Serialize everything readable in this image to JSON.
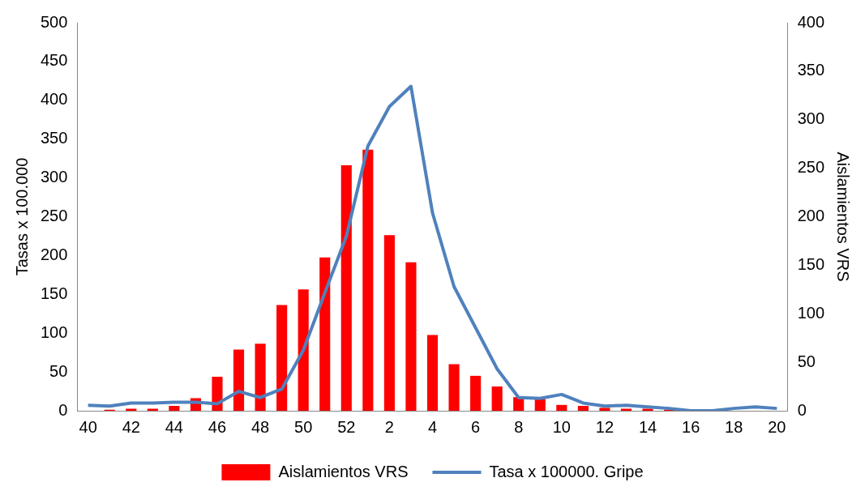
{
  "chart_data": {
    "type": "bar",
    "ylabel": "Tasas x 100.000",
    "y2label": "Aislamientos VRS",
    "categories": [
      "40",
      null,
      "42",
      null,
      "44",
      null,
      "46",
      null,
      "48",
      null,
      "50",
      null,
      "52",
      null,
      "2",
      null,
      "4",
      null,
      "6",
      null,
      "8",
      null,
      "10",
      null,
      "12",
      null,
      "14",
      null,
      "16",
      null,
      "18",
      null,
      "20"
    ],
    "series": [
      {
        "name": "Aislamientos VRS",
        "axis": "y2",
        "color": "#ff0000",
        "values": [
          0,
          1,
          2,
          2,
          5,
          13,
          35,
          63,
          69,
          109,
          125,
          158,
          253,
          269,
          181,
          153,
          78,
          48,
          36,
          25,
          14,
          12,
          6,
          5,
          3,
          2,
          2,
          1,
          0,
          0,
          0,
          0,
          0
        ]
      },
      {
        "name": "Tasa x 100000. Gripe",
        "type": "line",
        "axis": "y",
        "color": "#4f81bd",
        "values": [
          7,
          6,
          10,
          10,
          11,
          11,
          9,
          25,
          17,
          28,
          78,
          152,
          225,
          341,
          392,
          418,
          255,
          160,
          107,
          54,
          17,
          16,
          21,
          10,
          6,
          7,
          5,
          3,
          0,
          0,
          3,
          5,
          3
        ]
      }
    ],
    "ylim": [
      0,
      500
    ],
    "yticks": [
      0,
      50,
      100,
      150,
      200,
      250,
      300,
      350,
      400,
      450,
      500
    ],
    "y2lim": [
      0,
      400
    ],
    "y2ticks": [
      0,
      50,
      100,
      150,
      200,
      250,
      300,
      350,
      400
    ],
    "grid": false,
    "legend": "bottom",
    "marker": "none",
    "line_style": "solid"
  }
}
